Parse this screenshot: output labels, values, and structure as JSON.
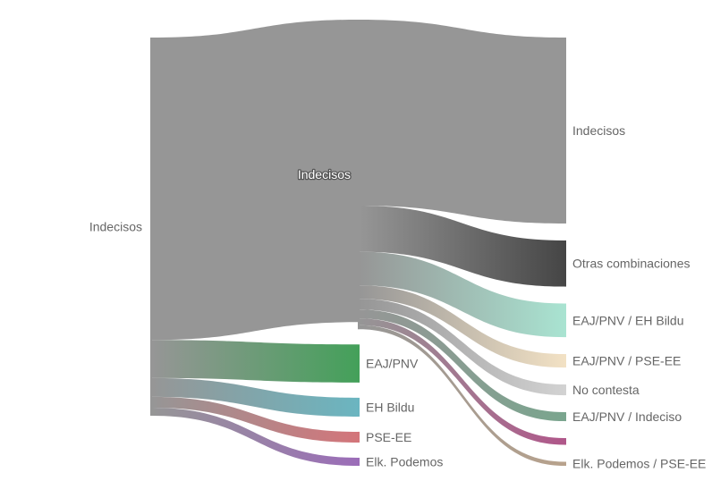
{
  "chart_data": {
    "type": "sankey",
    "title": "",
    "unit": "",
    "nodes": [
      {
        "id": "L_Indecisos",
        "label": "Indecisos",
        "column": 0,
        "color": "#969696"
      },
      {
        "id": "M_Indecisos",
        "label": "Indecisos",
        "column": 1,
        "color": "#969696"
      },
      {
        "id": "M_EAJPNV",
        "label": "EAJ/PNV",
        "column": 1,
        "color": "#44a05a"
      },
      {
        "id": "M_EHBildu",
        "label": "EH Bildu",
        "column": 1,
        "color": "#6bb5c0"
      },
      {
        "id": "M_PSEEE",
        "label": "PSE-EE",
        "column": 1,
        "color": "#d3757a"
      },
      {
        "id": "M_Elk",
        "label": "Elk. Podemos",
        "column": 1,
        "color": "#9b6db8"
      },
      {
        "id": "R_Indecisos",
        "label": "Indecisos",
        "column": 2,
        "color": "#969696"
      },
      {
        "id": "R_Otras",
        "label": "Otras combinaciones",
        "column": 2,
        "color": "#464646"
      },
      {
        "id": "R_PNVBildu",
        "label": "EAJ/PNV / EH Bildu",
        "column": 2,
        "color": "#a9e3d1"
      },
      {
        "id": "R_PNVPSE",
        "label": "EAJ/PNV / PSE-EE",
        "column": 2,
        "color": "#f2e1c4"
      },
      {
        "id": "R_NoContesta",
        "label": "No contesta",
        "column": 2,
        "color": "#d2d2d2"
      },
      {
        "id": "R_PNVIndeciso",
        "label": "EAJ/PNV / Indeciso",
        "column": 2,
        "color": "#7aa58e"
      },
      {
        "id": "R_Unlabeled",
        "label": "",
        "column": 2,
        "color": "#b0578a"
      },
      {
        "id": "R_ElkPSE",
        "label": "Elk. Podemos / PSE-EE",
        "column": 2,
        "color": "#b8a28c"
      }
    ],
    "links": [
      {
        "source": "L_Indecisos",
        "target": "M_Indecisos",
        "value": 67.5
      },
      {
        "source": "L_Indecisos",
        "target": "M_EAJPNV",
        "value": 8.5
      },
      {
        "source": "L_Indecisos",
        "target": "M_EHBildu",
        "value": 4.2
      },
      {
        "source": "L_Indecisos",
        "target": "M_PSEEE",
        "value": 2.4
      },
      {
        "source": "L_Indecisos",
        "target": "M_Elk",
        "value": 1.8
      },
      {
        "source": "M_Indecisos",
        "target": "R_Indecisos",
        "value": 41.5
      },
      {
        "source": "M_Indecisos",
        "target": "R_Otras",
        "value": 10.3
      },
      {
        "source": "M_Indecisos",
        "target": "R_PNVBildu",
        "value": 7.5
      },
      {
        "source": "M_Indecisos",
        "target": "R_PNVPSE",
        "value": 3.0
      },
      {
        "source": "M_Indecisos",
        "target": "R_NoContesta",
        "value": 2.4
      },
      {
        "source": "M_Indecisos",
        "target": "R_PNVIndeciso",
        "value": 2.0
      },
      {
        "source": "M_Indecisos",
        "target": "R_Unlabeled",
        "value": 1.5
      },
      {
        "source": "M_Indecisos",
        "target": "R_ElkPSE",
        "value": 0.9
      }
    ]
  }
}
